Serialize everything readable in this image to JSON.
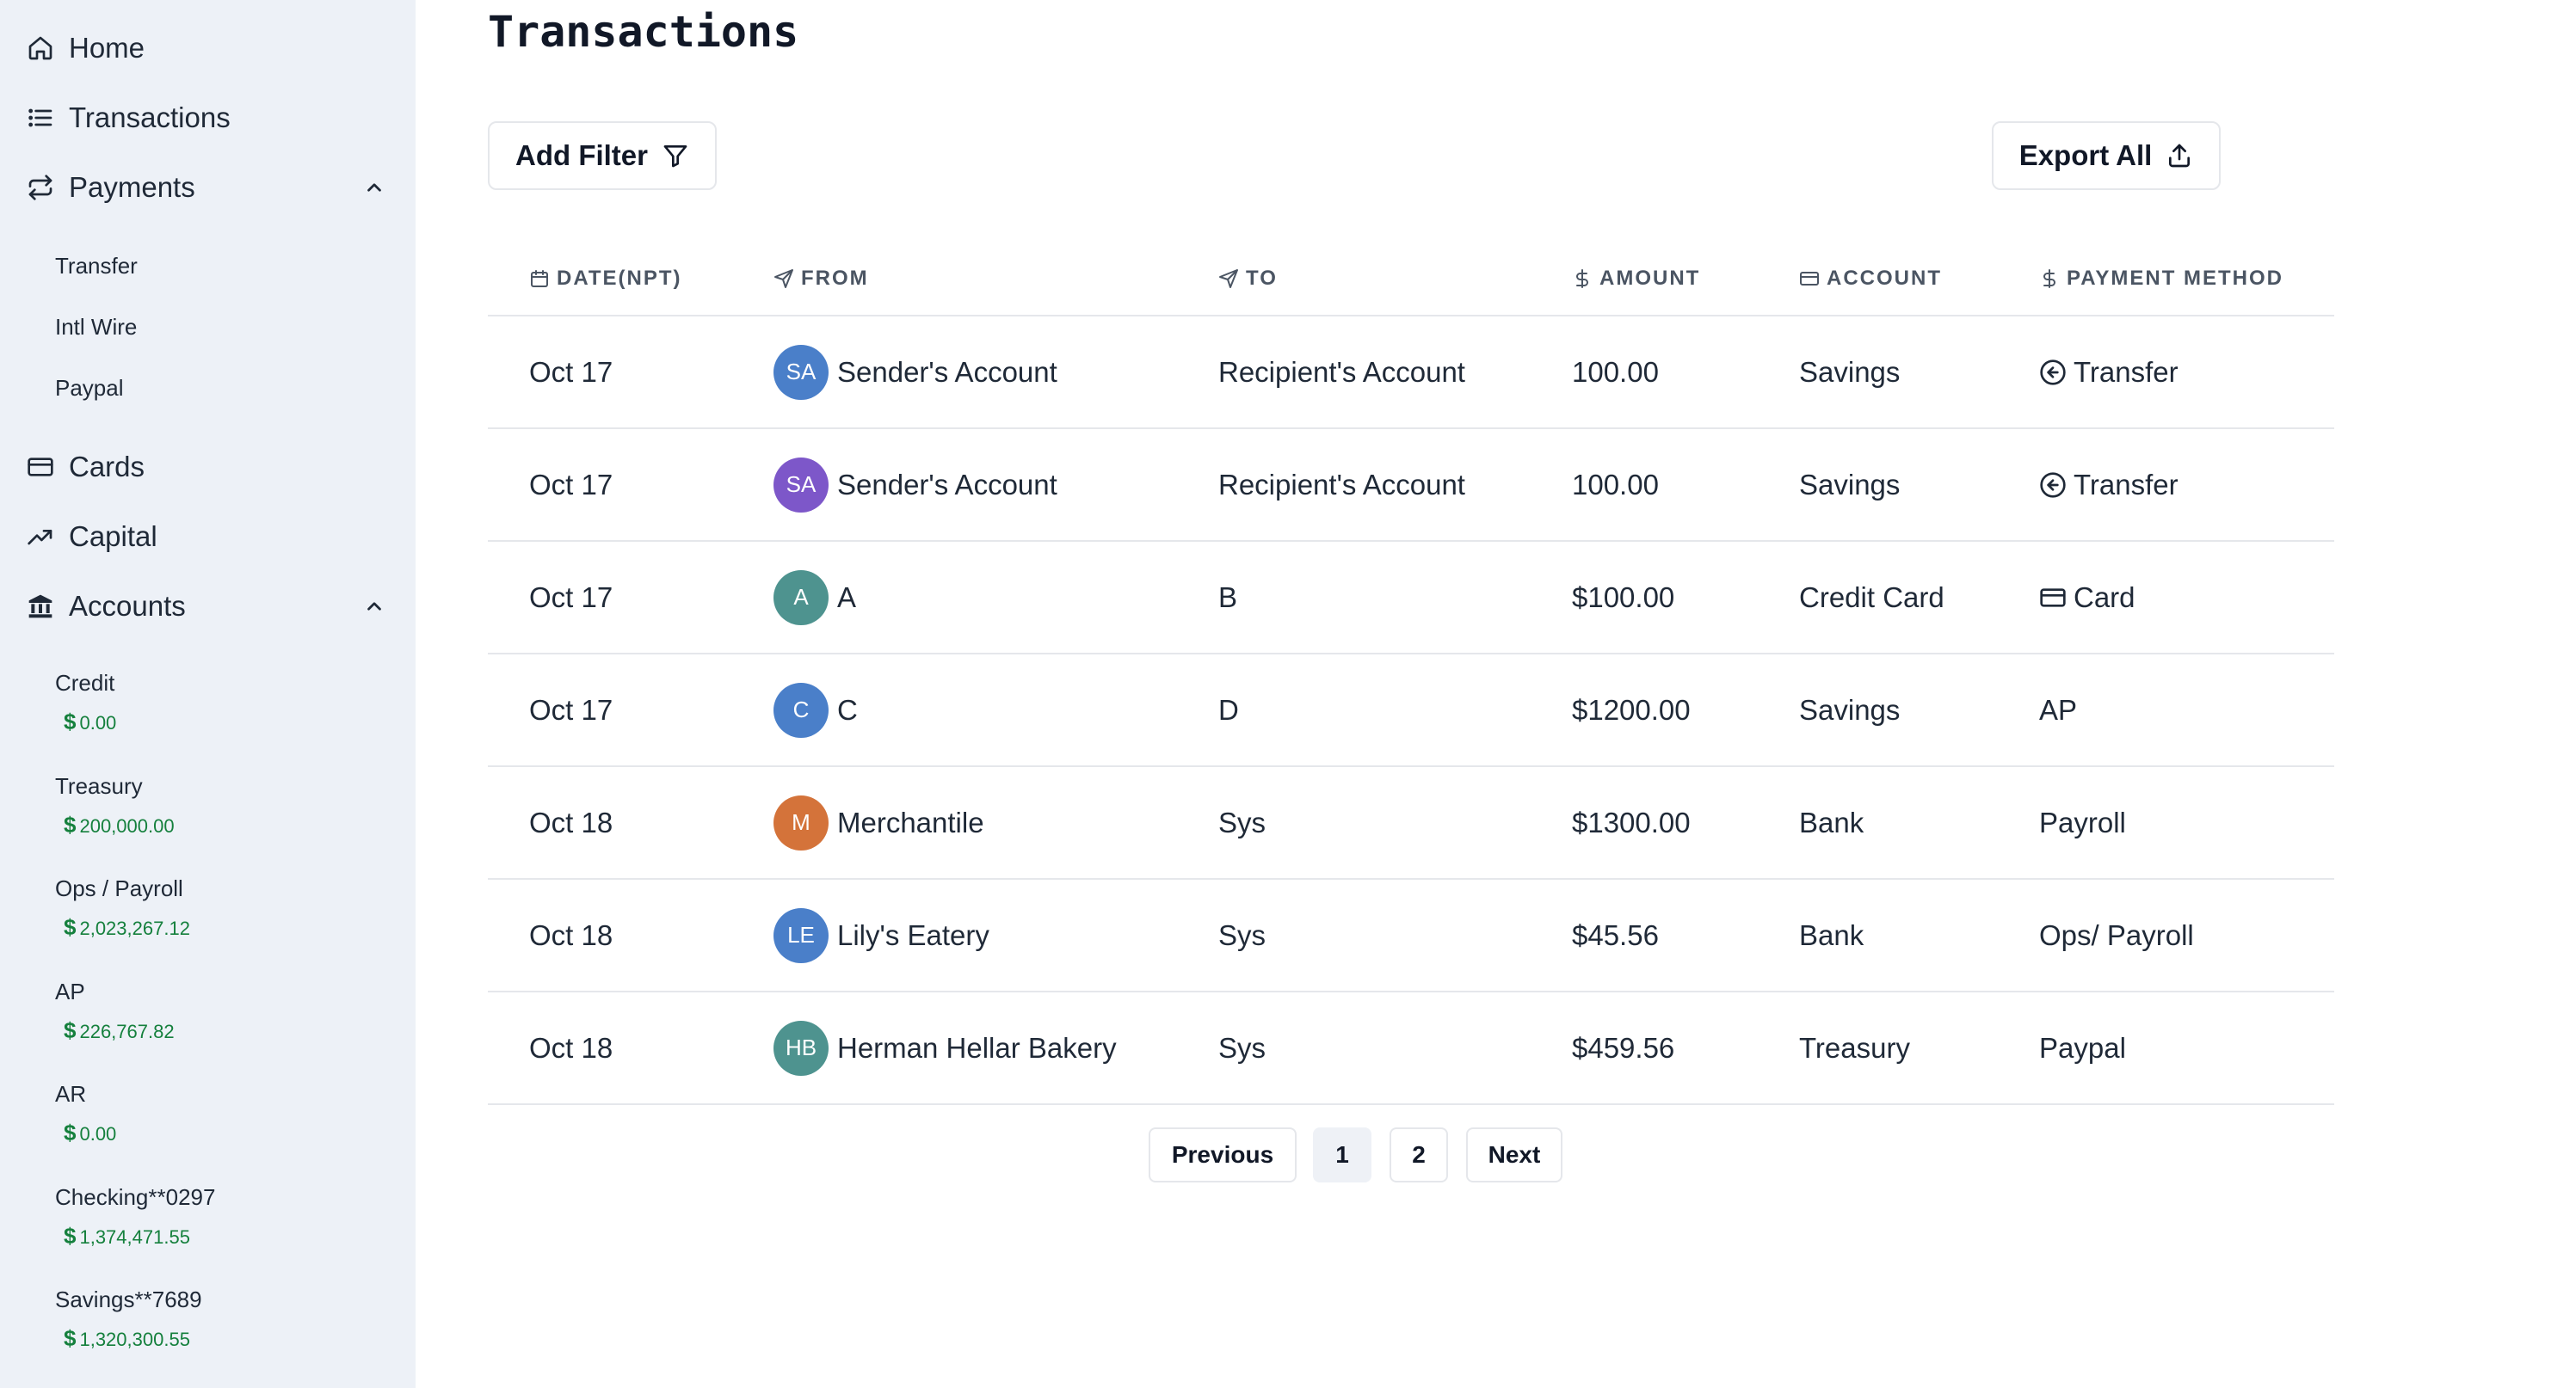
{
  "sidebar": {
    "nav": {
      "home": "Home",
      "transactions": "Transactions",
      "payments": "Payments",
      "cards": "Cards",
      "capital": "Capital",
      "accounts": "Accounts"
    },
    "payments_sub": [
      "Transfer",
      "Intl Wire",
      "Paypal"
    ],
    "accounts_list": [
      {
        "name": "Credit",
        "currency": "$",
        "balance": "0.00"
      },
      {
        "name": "Treasury",
        "currency": "$",
        "balance": "200,000.00"
      },
      {
        "name": "Ops / Payroll",
        "currency": "$",
        "balance": "2,023,267.12"
      },
      {
        "name": "AP",
        "currency": "$",
        "balance": "226,767.82"
      },
      {
        "name": "AR",
        "currency": "$",
        "balance": "0.00"
      },
      {
        "name": "Checking**0297",
        "currency": "$",
        "balance": "1,374,471.55"
      },
      {
        "name": "Savings**7689",
        "currency": "$",
        "balance": "1,320,300.55"
      }
    ],
    "balance_color": "#15803d"
  },
  "main": {
    "title": "Transactions",
    "add_filter_label": "Add Filter",
    "export_label": "Export All"
  },
  "table": {
    "headers": {
      "date": "DATE(NPT)",
      "from": "FROM",
      "to": "TO",
      "amount": "AMOUNT",
      "account": "ACCOUNT",
      "payment_method": "PAYMENT METHOD"
    },
    "rows": [
      {
        "date": "Oct 17",
        "initials": "SA",
        "avatar_color": "#4a7fc9",
        "from": "Sender's Account",
        "to": "Recipient's Account",
        "amount": "100.00",
        "account": "Savings",
        "pm_icon": "arrow-left-circle-icon",
        "payment_method": "Transfer"
      },
      {
        "date": "Oct 17",
        "initials": "SA",
        "avatar_color": "#7d57c9",
        "from": "Sender's Account",
        "to": "Recipient's Account",
        "amount": "100.00",
        "account": "Savings",
        "pm_icon": "arrow-left-circle-icon",
        "payment_method": "Transfer"
      },
      {
        "date": "Oct 17",
        "initials": "A",
        "avatar_color": "#4e938f",
        "from": "A",
        "to": "B",
        "amount": "$100.00",
        "account": "Credit Card",
        "pm_icon": "credit-card-icon",
        "payment_method": "Card"
      },
      {
        "date": "Oct 17",
        "initials": "C",
        "avatar_color": "#4a7fc9",
        "from": "C",
        "to": "D",
        "amount": "$1200.00",
        "account": "Savings",
        "pm_icon": "",
        "payment_method": "AP"
      },
      {
        "date": "Oct 18",
        "initials": "M",
        "avatar_color": "#d4733a",
        "from": "Merchantile",
        "to": "Sys",
        "amount": "$1300.00",
        "account": "Bank",
        "pm_icon": "",
        "payment_method": "Payroll"
      },
      {
        "date": "Oct 18",
        "initials": "LE",
        "avatar_color": "#4a7fc9",
        "from": "Lily's Eatery",
        "to": "Sys",
        "amount": "$45.56",
        "account": "Bank",
        "pm_icon": "",
        "payment_method": "Ops/ Payroll"
      },
      {
        "date": "Oct 18",
        "initials": "HB",
        "avatar_color": "#4e938f",
        "from": "Herman Hellar Bakery",
        "to": "Sys",
        "amount": "$459.56",
        "account": "Treasury",
        "pm_icon": "",
        "payment_method": "Paypal"
      }
    ]
  },
  "pagination": {
    "previous": "Previous",
    "pages": [
      "1",
      "2"
    ],
    "active_page": "1",
    "next": "Next"
  }
}
